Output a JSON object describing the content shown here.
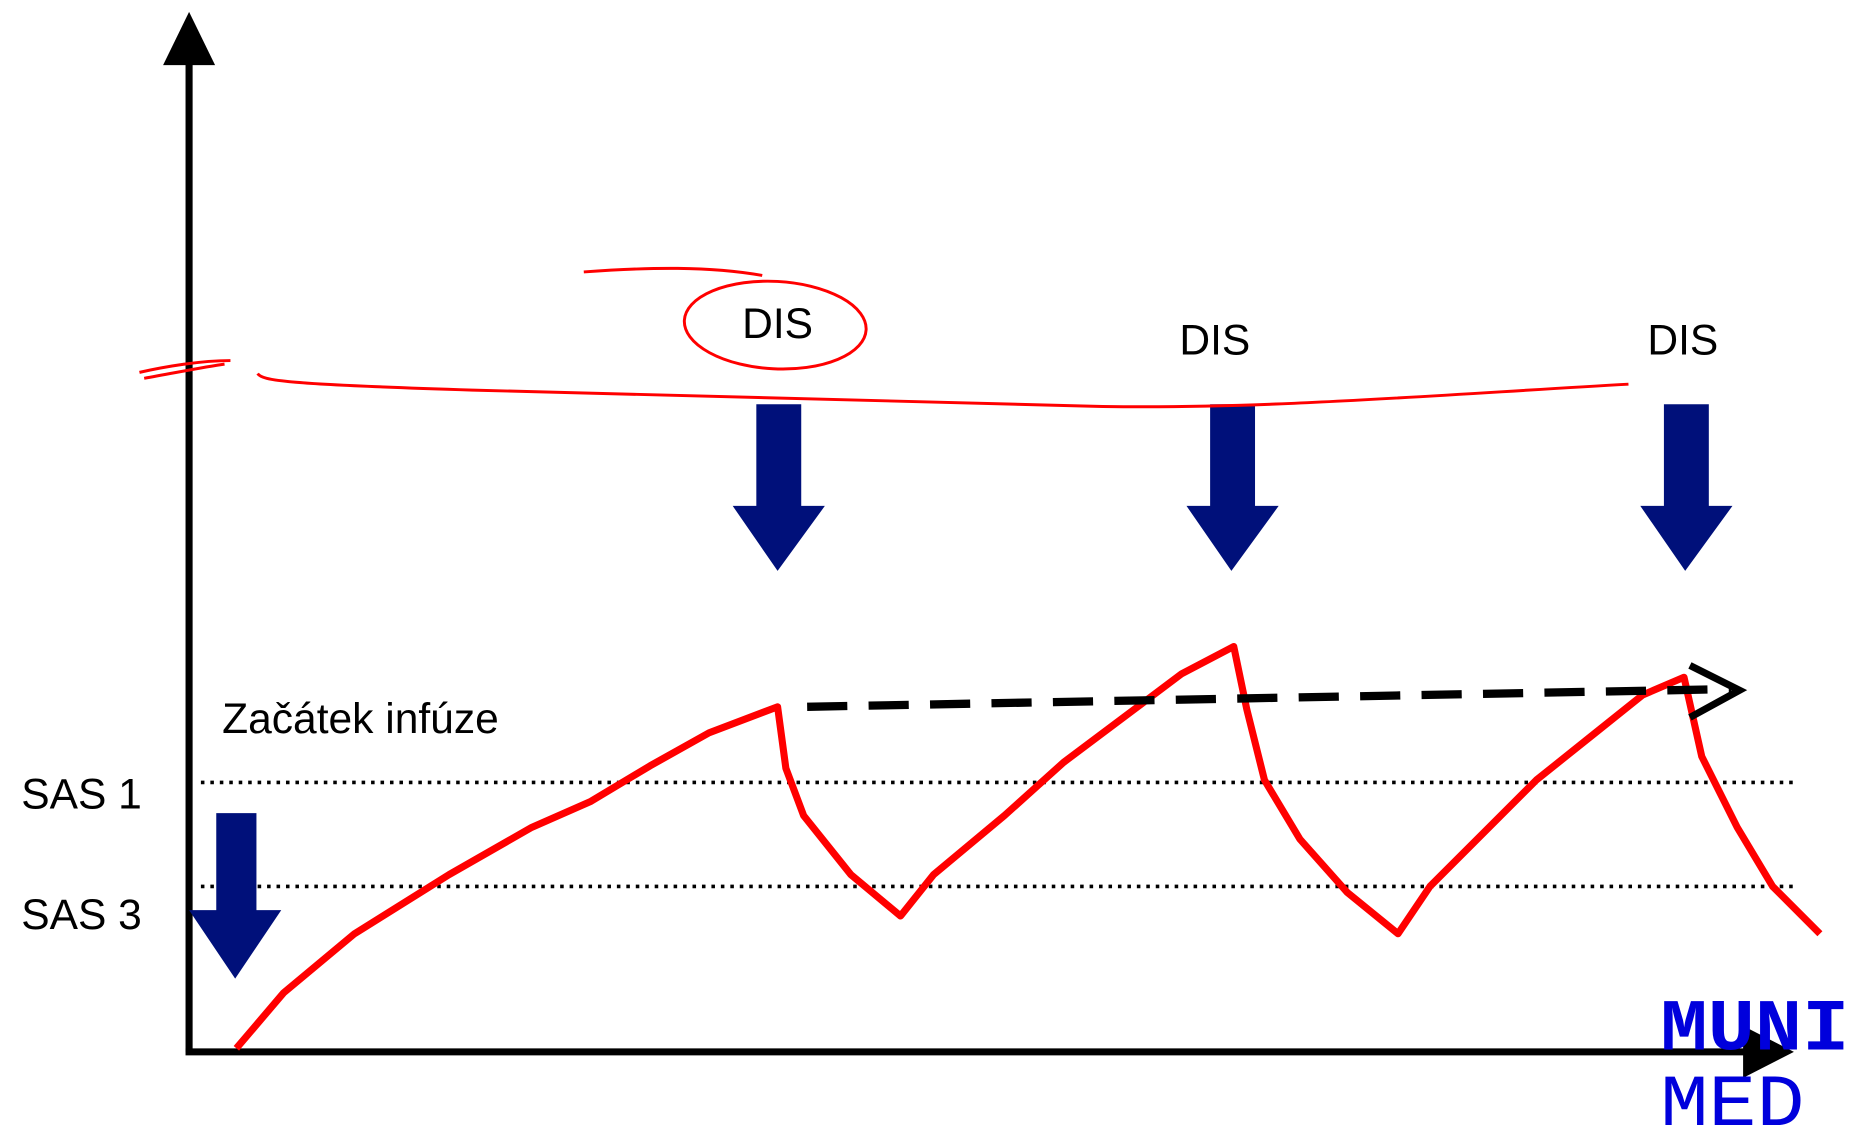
{
  "labels": {
    "dis": [
      "DIS",
      "DIS",
      "DIS"
    ],
    "infusion_start": "Začátek infúze",
    "sas1": "SAS 1",
    "sas3": "SAS 3"
  },
  "logo": {
    "line1": "MUNI",
    "line2": "MED"
  }
}
